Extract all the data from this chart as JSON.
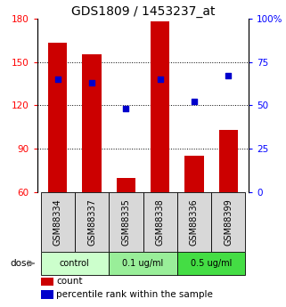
{
  "title": "GDS1809 / 1453237_at",
  "samples": [
    "GSM88334",
    "GSM88337",
    "GSM88335",
    "GSM88338",
    "GSM88336",
    "GSM88399"
  ],
  "bar_values": [
    163,
    155,
    70,
    178,
    85,
    103
  ],
  "percentile_values": [
    65,
    63,
    48,
    65,
    52,
    67
  ],
  "bar_color": "#cc0000",
  "dot_color": "#0000cc",
  "ylim_left": [
    60,
    180
  ],
  "ylim_right": [
    0,
    100
  ],
  "yticks_left": [
    60,
    90,
    120,
    150,
    180
  ],
  "yticks_right": [
    0,
    25,
    50,
    75,
    100
  ],
  "yticklabels_right": [
    "0",
    "25",
    "50",
    "75",
    "100%"
  ],
  "dose_groups": [
    {
      "label": "control",
      "indices": [
        0,
        1
      ],
      "color": "#ccffcc"
    },
    {
      "label": "0.1 ug/ml",
      "indices": [
        2,
        3
      ],
      "color": "#99ee99"
    },
    {
      "label": "0.5 ug/ml",
      "indices": [
        4,
        5
      ],
      "color": "#44dd44"
    }
  ],
  "legend_count_label": "count",
  "legend_pct_label": "percentile rank within the sample",
  "dose_label": "dose",
  "sample_bg_color": "#d8d8d8",
  "title_fontsize": 10,
  "tick_fontsize": 7.5,
  "label_fontsize": 7,
  "bar_width": 0.55,
  "gridline_ticks": [
    90,
    120,
    150
  ],
  "dot_size": 22
}
